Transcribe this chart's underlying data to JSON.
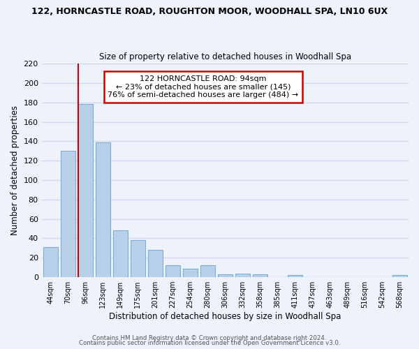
{
  "title_line1": "122, HORNCASTLE ROAD, ROUGHTON MOOR, WOODHALL SPA, LN10 6UX",
  "title_line2": "Size of property relative to detached houses in Woodhall Spa",
  "xlabel": "Distribution of detached houses by size in Woodhall Spa",
  "ylabel": "Number of detached properties",
  "bin_labels": [
    "44sqm",
    "70sqm",
    "96sqm",
    "123sqm",
    "149sqm",
    "175sqm",
    "201sqm",
    "227sqm",
    "254sqm",
    "280sqm",
    "306sqm",
    "332sqm",
    "358sqm",
    "385sqm",
    "411sqm",
    "437sqm",
    "463sqm",
    "489sqm",
    "516sqm",
    "542sqm",
    "568sqm"
  ],
  "bar_heights": [
    31,
    130,
    178,
    139,
    48,
    38,
    28,
    12,
    9,
    12,
    3,
    4,
    3,
    0,
    2,
    0,
    0,
    0,
    0,
    0,
    2
  ],
  "bar_color": "#b8d0ea",
  "bar_edge_color": "#7aaed4",
  "property_line_x": 2,
  "annotation_title": "122 HORNCASTLE ROAD: 94sqm",
  "annotation_line2": "← 23% of detached houses are smaller (145)",
  "annotation_line3": "76% of semi-detached houses are larger (484) →",
  "annotation_box_color": "#ffffff",
  "annotation_box_edge": "#cc0000",
  "vline_color": "#cc0000",
  "ylim": [
    0,
    220
  ],
  "yticks": [
    0,
    20,
    40,
    60,
    80,
    100,
    120,
    140,
    160,
    180,
    200,
    220
  ],
  "footnote1": "Contains HM Land Registry data © Crown copyright and database right 2024.",
  "footnote2": "Contains public sector information licensed under the Open Government Licence v3.0.",
  "bg_color": "#eef2fb",
  "grid_color": "#d0d8ee"
}
